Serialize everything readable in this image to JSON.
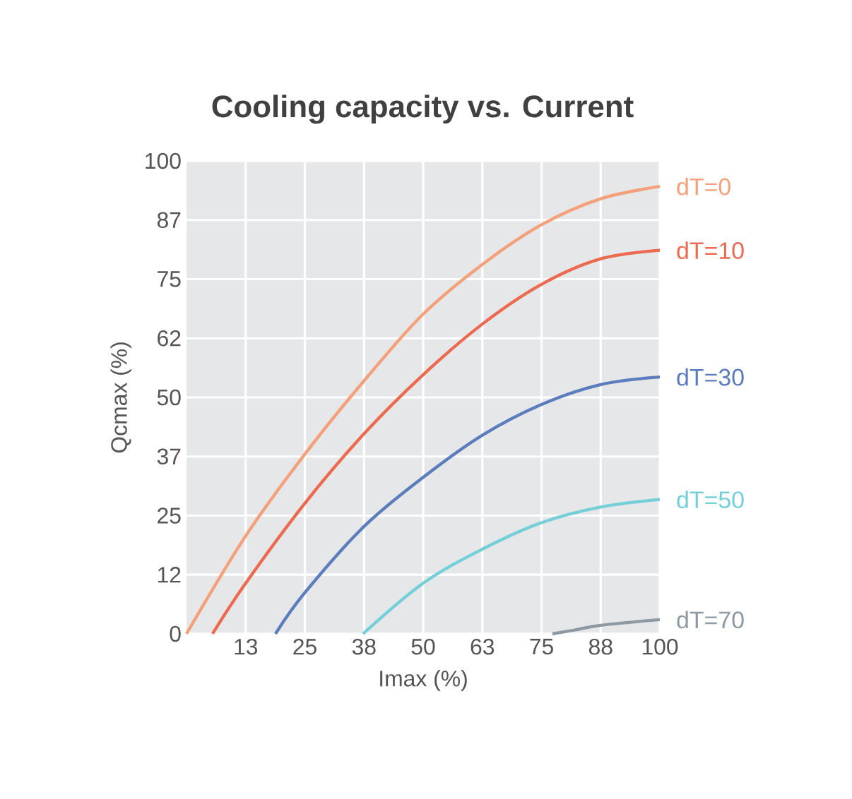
{
  "chart_data": {
    "type": "line",
    "title": "Cooling capacity vs. Current",
    "xlabel": "Imax (%)",
    "ylabel": "Qcmax (%)",
    "xlim": [
      0,
      100
    ],
    "ylim": [
      0,
      100
    ],
    "xticks": [
      {
        "value": 12.5,
        "label": "13"
      },
      25,
      {
        "value": 37.5,
        "label": "38"
      },
      50,
      {
        "value": 62.5,
        "label": "63"
      },
      75,
      {
        "value": 87.5,
        "label": "88"
      },
      100
    ],
    "yticks": [
      0,
      {
        "value": 12.5,
        "label": "12"
      },
      25,
      {
        "value": 37.5,
        "label": "37"
      },
      50,
      {
        "value": 62.5,
        "label": "62"
      },
      75,
      {
        "value": 87.5,
        "label": "87"
      },
      100
    ],
    "grid": true,
    "legend": false,
    "marker": "none",
    "line_style": "solid",
    "series": [
      {
        "name": "dT=0",
        "color": "#f4a07a",
        "x": [
          0,
          12.5,
          25,
          37.5,
          50,
          62.5,
          75,
          87.5,
          100
        ],
        "values": [
          0,
          20.7,
          38,
          53.5,
          67.6,
          78.1,
          86.5,
          92,
          94.6
        ]
      },
      {
        "name": "dT=10",
        "color": "#ec6b50",
        "x": [
          5.5,
          12.5,
          25,
          37.5,
          50,
          62.5,
          75,
          87.5,
          100
        ],
        "values": [
          0,
          10.7,
          27.6,
          42.3,
          54.8,
          65.5,
          73.9,
          79.3,
          81.1
        ]
      },
      {
        "name": "dT=30",
        "color": "#5b7dbd",
        "x": [
          18.8,
          25,
          37.5,
          50,
          62.5,
          75,
          87.5,
          100
        ],
        "values": [
          0,
          8.7,
          22.7,
          33.1,
          42,
          48.5,
          52.7,
          54.3
        ]
      },
      {
        "name": "dT=50",
        "color": "#74cfd9",
        "x": [
          37.3,
          50,
          62.5,
          75,
          87.5,
          100
        ],
        "values": [
          0,
          10.7,
          17.9,
          23.5,
          26.8,
          28.4
        ]
      },
      {
        "name": "dT=70",
        "color": "#8e9aa3",
        "x": [
          77.3,
          82,
          87.5,
          100
        ],
        "values": [
          0,
          0.8,
          1.8,
          3.0
        ]
      }
    ]
  }
}
